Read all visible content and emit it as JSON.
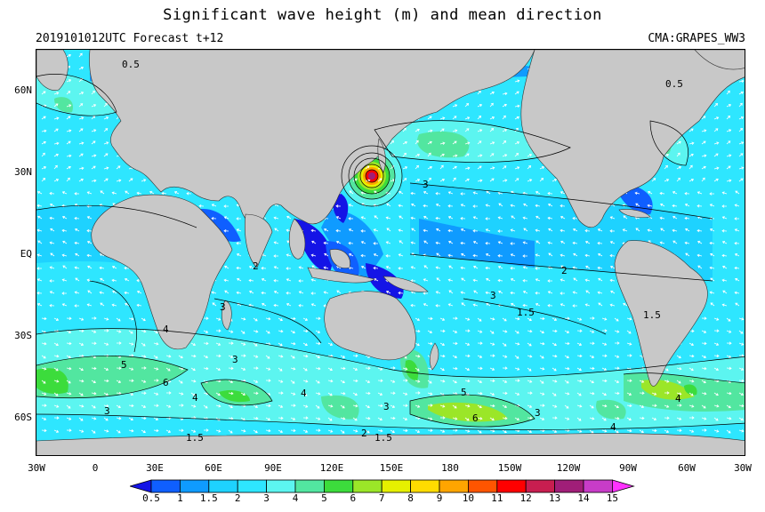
{
  "header": {
    "title": "Significant wave height (m) and mean direction",
    "left_subtitle": "2019101012UTC Forecast t+12",
    "right_subtitle": "CMA:GRAPES_WW3"
  },
  "axes": {
    "lat_ticks": [
      "60N",
      "30N",
      "EQ",
      "30S",
      "60S"
    ],
    "lon_ticks": [
      "30W",
      "0",
      "30E",
      "60E",
      "90E",
      "120E",
      "150E",
      "180",
      "150W",
      "120W",
      "90W",
      "60W",
      "30W"
    ]
  },
  "contour_labels": [
    "0.5",
    "0.5",
    "1.5",
    "2",
    "3",
    "3",
    "3",
    "4",
    "3",
    "2",
    "1.5",
    "3",
    "4",
    "6",
    "4",
    "5",
    "6",
    "4",
    "3",
    "3",
    "1.5",
    "2",
    "1.5",
    "4",
    "5"
  ],
  "colorbar": {
    "levels": [
      "0.5",
      "1",
      "1.5",
      "2",
      "3",
      "4",
      "5",
      "6",
      "7",
      "8",
      "9",
      "10",
      "11",
      "12",
      "13",
      "14",
      "15"
    ],
    "colors": [
      "#1414e6",
      "#0f5fff",
      "#0f9bff",
      "#1ed2ff",
      "#2ee6ff",
      "#5cf5f0",
      "#52e6a0",
      "#3cdc3c",
      "#9be628",
      "#e6f000",
      "#ffdc00",
      "#ffa500",
      "#ff5500",
      "#ff0000",
      "#c81e50",
      "#a01e78",
      "#c83cc8",
      "#ff32ff"
    ]
  },
  "map_colors": {
    "land": "#c8c8c8",
    "ocean_base": "#2ee6ff"
  }
}
